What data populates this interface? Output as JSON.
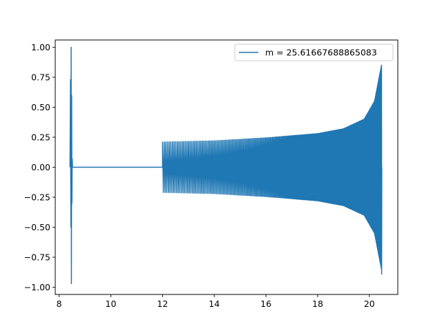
{
  "chart_data": {
    "type": "line",
    "title": "",
    "xlabel": "",
    "ylabel": "",
    "xlim": [
      7.85,
      21.1
    ],
    "ylim": [
      -1.06,
      1.06
    ],
    "x_ticks": [
      8,
      10,
      12,
      14,
      16,
      18,
      20
    ],
    "x_tick_labels": [
      "8",
      "10",
      "12",
      "14",
      "16",
      "18",
      "20"
    ],
    "y_ticks": [
      1.0,
      0.75,
      0.5,
      0.25,
      0.0,
      -0.25,
      -0.5,
      -0.75,
      -1.0
    ],
    "y_tick_labels": [
      "1.00",
      "0.75",
      "0.50",
      "0.25",
      "0.00",
      "−0.25",
      "−0.50",
      "−0.75",
      "−1.00"
    ],
    "grid": false,
    "legend": {
      "position": "top-right",
      "entries": [
        "m = 25.61667688865083"
      ]
    },
    "series": [
      {
        "name": "m = 25.61667688865083",
        "color": "#1f77b4",
        "segments": [
          {
            "description": "early burst",
            "x_range": [
              8.42,
              8.52
            ],
            "max": 1.0,
            "min": -0.97
          },
          {
            "description": "flat zero",
            "x_range": [
              8.52,
              12.0
            ],
            "value": 0.0
          },
          {
            "description": "chirp oscillation",
            "x_range": [
              12.0,
              20.47
            ],
            "envelope": [
              {
                "x": 12.0,
                "amp": 0.21
              },
              {
                "x": 14.0,
                "amp": 0.22
              },
              {
                "x": 16.0,
                "amp": 0.245
              },
              {
                "x": 18.0,
                "amp": 0.28
              },
              {
                "x": 19.0,
                "amp": 0.32
              },
              {
                "x": 19.8,
                "amp": 0.4
              },
              {
                "x": 20.2,
                "amp": 0.55
              },
              {
                "x": 20.47,
                "amp": 0.85
              }
            ],
            "final_min": -0.89
          }
        ]
      }
    ]
  }
}
